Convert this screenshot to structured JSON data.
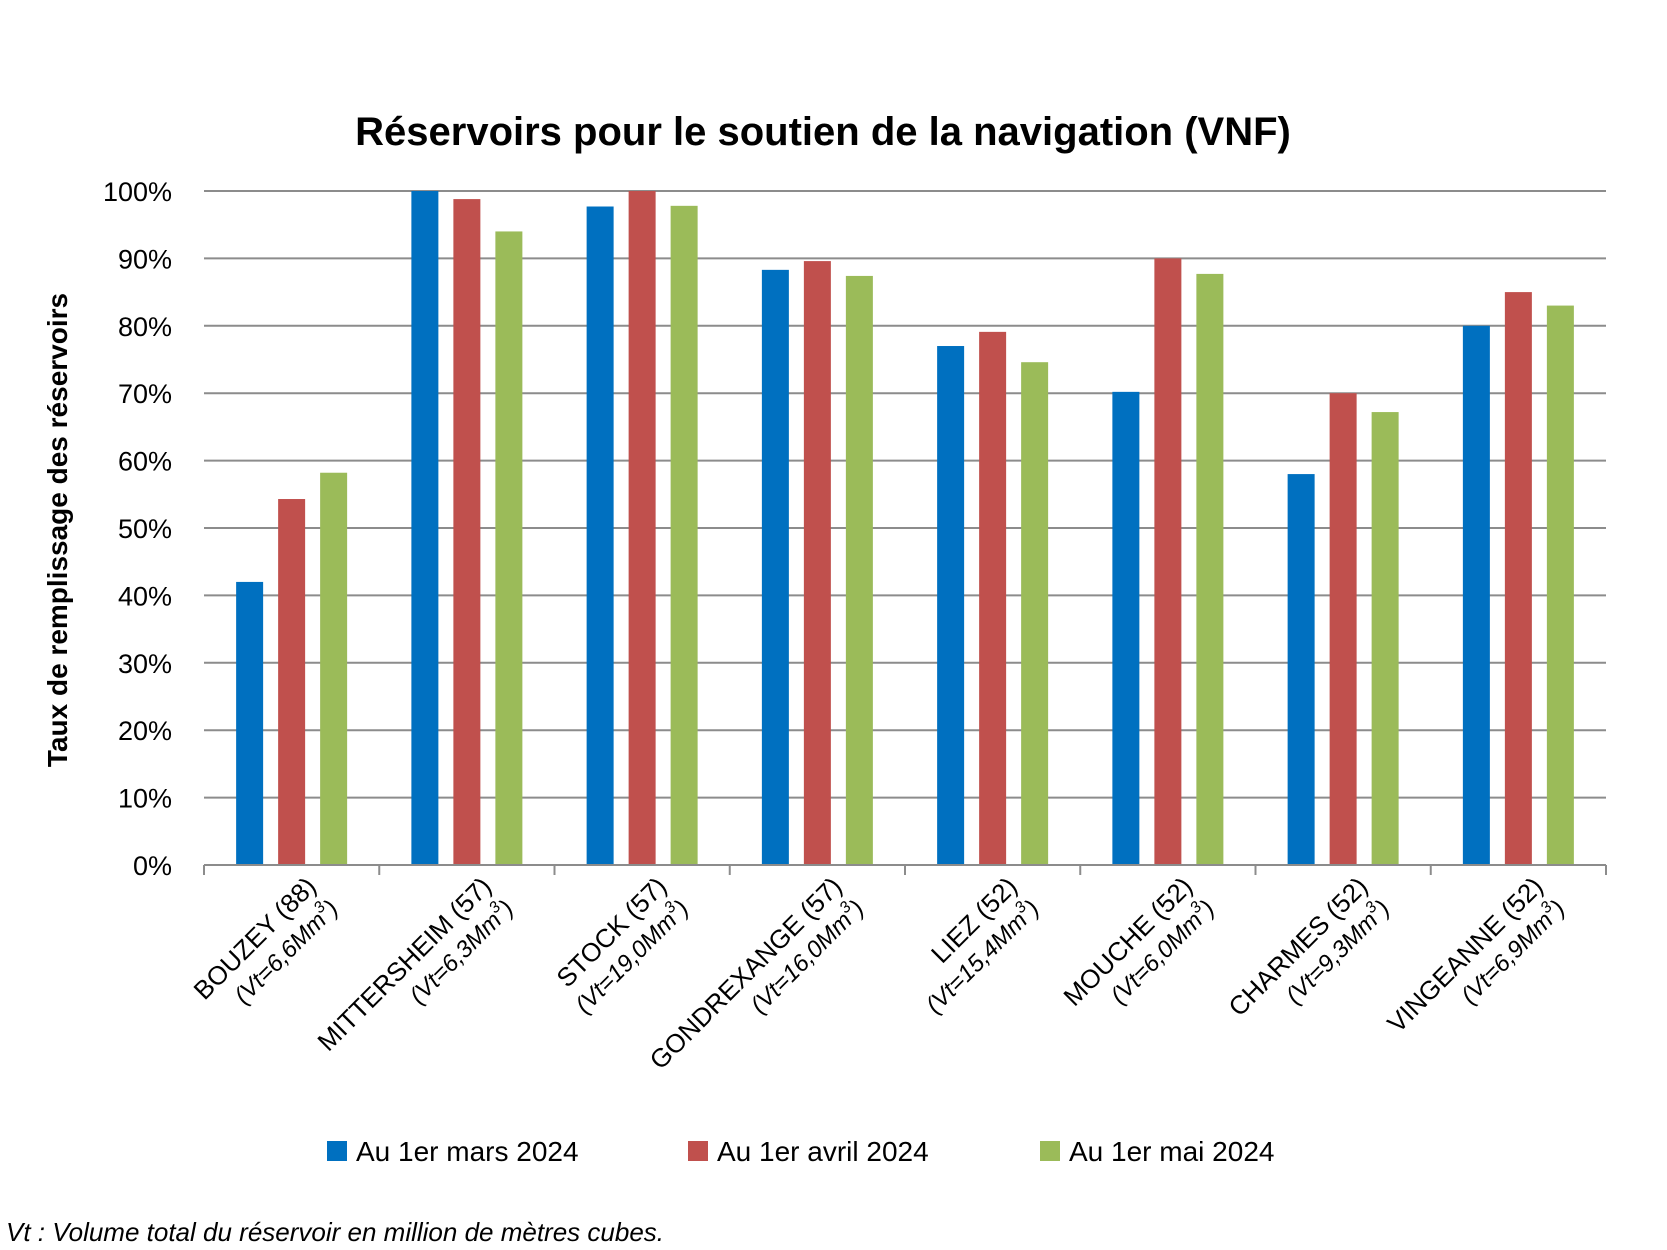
{
  "chart_data": {
    "type": "bar",
    "title": "Réservoirs pour le soutien de la navigation (VNF)",
    "ylabel": "Taux de remplissage des réservoirs",
    "xlabel": "",
    "ylim": [
      0,
      100
    ],
    "ytick_values": [
      0,
      10,
      20,
      30,
      40,
      50,
      60,
      70,
      80,
      90,
      100
    ],
    "ytick_labels": [
      "0%",
      "10%",
      "20%",
      "30%",
      "40%",
      "50%",
      "60%",
      "70%",
      "80%",
      "90%",
      "100%"
    ],
    "grid": true,
    "legend_position": "bottom",
    "categories": [
      {
        "name": "BOUZEY (88)",
        "volume": "(Vt=6,6Mm",
        "sup": "3",
        "close": ")"
      },
      {
        "name": "MITTERSHEIM (57)",
        "volume": "(Vt=6,3Mm",
        "sup": "3",
        "close": ")"
      },
      {
        "name": "STOCK (57)",
        "volume": "(Vt=19,0Mm",
        "sup": "3",
        "close": ")"
      },
      {
        "name": "GONDREXANGE (57)",
        "volume": "(Vt=16,0Mm",
        "sup": "3",
        "close": ")"
      },
      {
        "name": "LIEZ (52)",
        "volume": "(Vt=15,4Mm",
        "sup": "3",
        "close": ")"
      },
      {
        "name": "MOUCHE (52)",
        "volume": "(Vt=6,0Mm",
        "sup": "3",
        "close": ")"
      },
      {
        "name": "CHARMES (52)",
        "volume": "(Vt=9,3Mm",
        "sup": "3",
        "close": ")"
      },
      {
        "name": "VINGEANNE (52)",
        "volume": "(Vt=6,9Mm",
        "sup": "3",
        "close": ")"
      }
    ],
    "series": [
      {
        "name": "Au 1er mars 2024",
        "color": "#0070C0",
        "values": [
          42,
          100,
          97.7,
          88.3,
          77,
          70.2,
          58,
          80
        ]
      },
      {
        "name": "Au 1er avril 2024",
        "color": "#C0504D",
        "values": [
          54.3,
          98.8,
          100,
          89.6,
          79.1,
          90,
          70,
          85
        ]
      },
      {
        "name": "Au 1er mai 2024",
        "color": "#9BBB59",
        "values": [
          58.2,
          94,
          97.8,
          87.4,
          74.6,
          87.7,
          67.2,
          83
        ]
      }
    ]
  },
  "footnote": "Vt : Volume total du réservoir en million de mètres cubes."
}
